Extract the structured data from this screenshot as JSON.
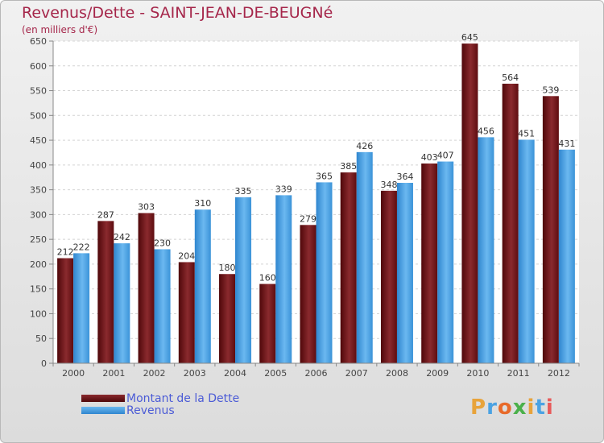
{
  "header": {
    "title": "Revenus/Dette - SAINT-JEAN-DE-BEUGNé",
    "subtitle": "(en milliers d'€)"
  },
  "legend": {
    "items": [
      {
        "label": "Montant de la Dette",
        "color": "#6b0f12"
      },
      {
        "label": "Revenus",
        "color": "#4aa2e3"
      }
    ]
  },
  "logo": {
    "letters": [
      "P",
      "r",
      "o",
      "x",
      "i",
      "t",
      "i"
    ],
    "colors": [
      "#e8a33a",
      "#4aa2e3",
      "#e86a2a",
      "#4ab04a",
      "#e8a33a",
      "#4aa2e3",
      "#e85a5a"
    ]
  },
  "chart_data": {
    "type": "bar",
    "categories": [
      "2000",
      "2001",
      "2002",
      "2003",
      "2004",
      "2005",
      "2006",
      "2007",
      "2008",
      "2009",
      "2010",
      "2011",
      "2012"
    ],
    "series": [
      {
        "name": "Montant de la Dette",
        "color": "#6b0f12",
        "values": [
          212,
          287,
          303,
          204,
          180,
          160,
          279,
          385,
          348,
          403,
          645,
          564,
          539
        ]
      },
      {
        "name": "Revenus",
        "color": "#4aa2e3",
        "values": [
          222,
          242,
          230,
          310,
          335,
          339,
          365,
          426,
          364,
          407,
          456,
          451,
          431
        ]
      }
    ],
    "yticks": [
      "0",
      "50",
      "100",
      "150",
      "200",
      "250",
      "300",
      "350",
      "400",
      "450",
      "500",
      "550",
      "600",
      "650"
    ],
    "ylim": [
      0,
      650
    ],
    "grid": true,
    "legend_position": "bottom-left"
  }
}
